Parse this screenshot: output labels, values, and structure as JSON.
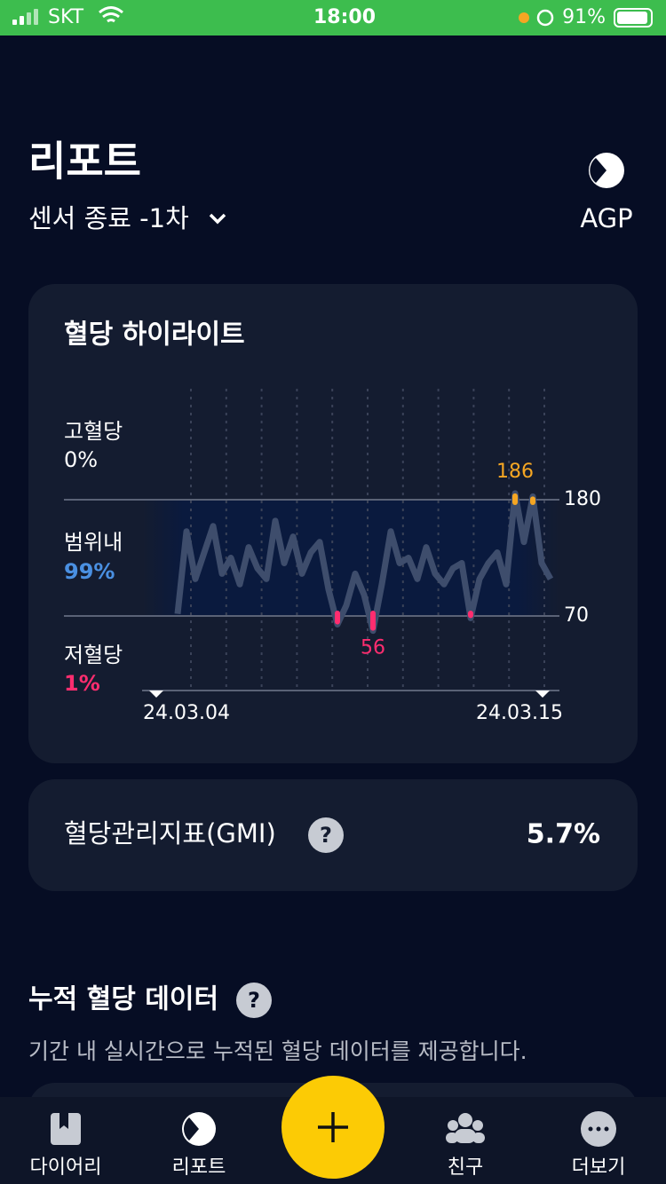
{
  "status_bar": {
    "carrier": "SKT",
    "time": "18:00",
    "battery": "91%"
  },
  "header": {
    "title": "리포트",
    "subtitle": "센서 종료 -1차",
    "agp_label": "AGP"
  },
  "highlight_card": {
    "title": "혈당 하이라이트",
    "high_label": "고혈당",
    "high_value": "0%",
    "in_range_label": "범위내",
    "in_range_value": "99%",
    "low_label": "저혈당",
    "low_value": "1%",
    "chart": {
      "type": "line",
      "ylim": [
        50,
        195
      ],
      "upper": 180,
      "lower": 70,
      "x_start": "24.03.04",
      "x_end": "24.03.15",
      "max_label": 186,
      "min_label": 56,
      "values": [
        72,
        150,
        105,
        130,
        155,
        110,
        125,
        100,
        135,
        115,
        105,
        160,
        120,
        145,
        110,
        130,
        140,
        95,
        62,
        80,
        110,
        90,
        56,
        100,
        150,
        120,
        125,
        105,
        135,
        110,
        100,
        115,
        120,
        68,
        105,
        120,
        130,
        100,
        186,
        140,
        183,
        120,
        105
      ]
    }
  },
  "gmi_card": {
    "label": "혈당관리지표(GMI)",
    "help": "?",
    "value": "5.7%"
  },
  "cumulative": {
    "title": "누적 혈당 데이터",
    "help": "?",
    "description": "기간 내 실시간으로 누적된 혈당 데이터를 제공합니다."
  },
  "tab_bar": {
    "tabs": [
      "다이어리",
      "리포트",
      "친구",
      "더보기"
    ]
  }
}
